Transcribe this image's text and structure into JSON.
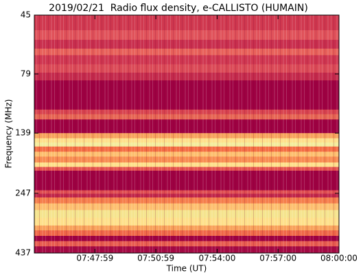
{
  "chart_data": {
    "type": "spectrogram",
    "title": "2019/02/21  Radio flux density, e-CALLISTO (HUMAIN)",
    "xlabel": "Time (UT)",
    "ylabel": "Frequency (MHz)",
    "xlim": [
      27900,
      28800
    ],
    "xticks": [
      {
        "value": 28079,
        "label": "07:47:59"
      },
      {
        "value": 28259,
        "label": "07:50:59"
      },
      {
        "value": 28440,
        "label": "07:54:00"
      },
      {
        "value": 28620,
        "label": "07:57:00"
      },
      {
        "value": 28800,
        "label": "08:00:00"
      }
    ],
    "ylim": [
      45,
      437
    ],
    "yscale": "log",
    "yinverted": true,
    "yticks": [
      45,
      79,
      139,
      247,
      437
    ],
    "bands": [
      {
        "from": 45,
        "to": 52,
        "color": "#d0384f"
      },
      {
        "from": 52,
        "to": 57,
        "color": "#e0525a"
      },
      {
        "from": 57,
        "to": 62,
        "color": "#c92f4e"
      },
      {
        "from": 62,
        "to": 66,
        "color": "#e8615a"
      },
      {
        "from": 66,
        "to": 72,
        "color": "#cf3650"
      },
      {
        "from": 72,
        "to": 78,
        "color": "#db4a57"
      },
      {
        "from": 78,
        "to": 84,
        "color": "#c42a4c"
      },
      {
        "from": 84,
        "to": 111,
        "color": "#9e0142"
      },
      {
        "from": 111,
        "to": 116,
        "color": "#d8434f"
      },
      {
        "from": 116,
        "to": 122,
        "color": "#e66553"
      },
      {
        "from": 122,
        "to": 139,
        "color": "#9e0142"
      },
      {
        "from": 139,
        "to": 146,
        "color": "#f7a35c"
      },
      {
        "from": 146,
        "to": 152,
        "color": "#fee08b"
      },
      {
        "from": 152,
        "to": 158,
        "color": "#f4ec9c"
      },
      {
        "from": 158,
        "to": 166,
        "color": "#f46d43"
      },
      {
        "from": 166,
        "to": 174,
        "color": "#fdbf6f"
      },
      {
        "from": 174,
        "to": 184,
        "color": "#f88c51"
      },
      {
        "from": 184,
        "to": 192,
        "color": "#fee08b"
      },
      {
        "from": 192,
        "to": 199,
        "color": "#e5534f"
      },
      {
        "from": 199,
        "to": 240,
        "color": "#9e0142"
      },
      {
        "from": 240,
        "to": 248,
        "color": "#e04f52"
      },
      {
        "from": 248,
        "to": 257,
        "color": "#c0264a"
      },
      {
        "from": 257,
        "to": 272,
        "color": "#f57e4c"
      },
      {
        "from": 272,
        "to": 290,
        "color": "#fdbf6f"
      },
      {
        "from": 290,
        "to": 312,
        "color": "#f5e48e"
      },
      {
        "from": 312,
        "to": 336,
        "color": "#fee08b"
      },
      {
        "from": 336,
        "to": 352,
        "color": "#f8a15a"
      },
      {
        "from": 352,
        "to": 371,
        "color": "#f06848"
      },
      {
        "from": 371,
        "to": 390,
        "color": "#9e0142"
      },
      {
        "from": 390,
        "to": 410,
        "color": "#e85d50"
      },
      {
        "from": 410,
        "to": 437,
        "color": "#a50a44"
      }
    ]
  }
}
